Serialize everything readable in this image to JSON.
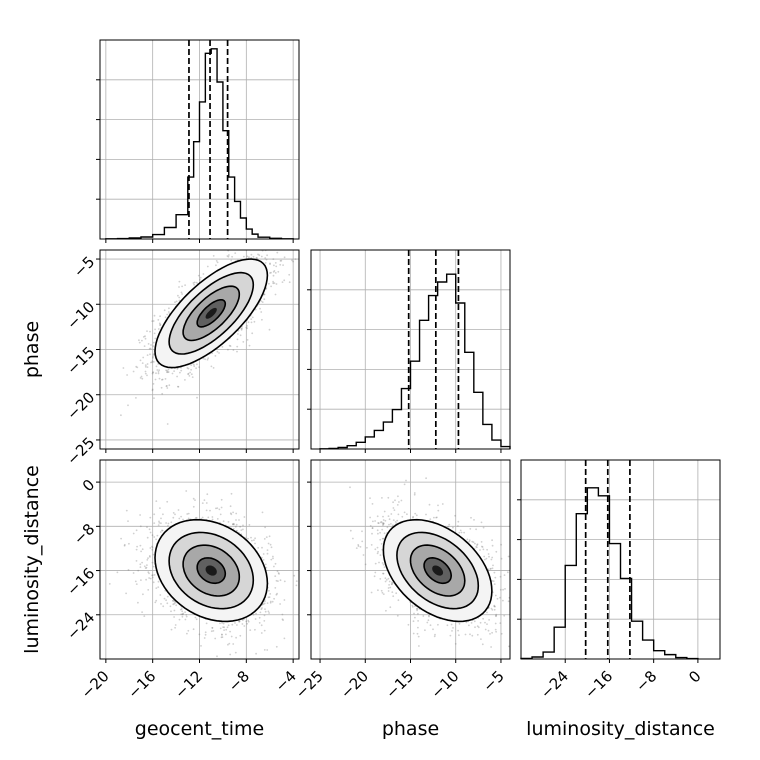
{
  "chart_data": {
    "type": "corner",
    "title": "",
    "grid": true,
    "parameters": [
      {
        "name": "geocent_time",
        "range": [
          -20.5,
          -3.5
        ],
        "ticks": [
          -20,
          -16,
          -12,
          -8,
          -4
        ],
        "tick_labels": [
          "−20",
          "−16",
          "−12",
          "−8",
          "−4"
        ],
        "quantiles": [
          -12.9,
          -11.1,
          -9.6
        ],
        "hist_bin_edges": [
          -20,
          -19,
          -18,
          -17,
          -16,
          -15,
          -14,
          -13,
          -12.5,
          -12,
          -11.5,
          -11,
          -10.5,
          -10,
          -9.5,
          -9,
          -8.5,
          -8,
          -7.5,
          -7,
          -6,
          -5,
          -4
        ],
        "hist_counts": [
          1,
          2,
          5,
          9,
          20,
          52,
          110,
          280,
          440,
          620,
          840,
          860,
          710,
          490,
          280,
          170,
          95,
          45,
          22,
          8,
          3,
          1
        ],
        "hist_ymax": 900
      },
      {
        "name": "phase",
        "range": [
          -26,
          -4
        ],
        "ticks": [
          -25,
          -20,
          -15,
          -10,
          -5
        ],
        "tick_labels": [
          "−25",
          "−20",
          "−15",
          "−10",
          "−5"
        ],
        "quantiles": [
          -15.2,
          -12.2,
          -9.7
        ],
        "hist_bin_edges": [
          -25,
          -24,
          -23,
          -22,
          -21,
          -20,
          -19,
          -18,
          -17,
          -16,
          -15,
          -14,
          -13,
          -12,
          -11,
          -10,
          -9,
          -8,
          -7,
          -6,
          -5,
          -4
        ],
        "hist_counts": [
          1,
          3,
          8,
          18,
          36,
          65,
          100,
          145,
          212,
          325,
          472,
          692,
          825,
          898,
          940,
          785,
          520,
          305,
          132,
          48,
          13
        ],
        "hist_ymax": 1070
      },
      {
        "name": "luminosity_distance",
        "range": [
          -32,
          4
        ],
        "ticks": [
          -24,
          -16,
          -8,
          0
        ],
        "tick_labels": [
          "−24",
          "−16",
          "−8",
          "0"
        ],
        "quantiles": [
          -20.3,
          -16.3,
          -12.3
        ],
        "hist_bin_edges": [
          -32,
          -30,
          -28,
          -26,
          -24,
          -22,
          -20,
          -18,
          -16,
          -14,
          -12,
          -10,
          -8,
          -6,
          -4,
          -2,
          0
        ],
        "hist_counts": [
          3,
          10,
          35,
          160,
          470,
          730,
          860,
          820,
          580,
          405,
          190,
          95,
          42,
          22,
          7,
          2
        ],
        "hist_ymax": 1000
      }
    ],
    "pairs": [
      {
        "x": 0,
        "y": 1,
        "center": [
          -11,
          -11
        ],
        "sigma": [
          2.4,
          3.0
        ],
        "rho": 0.7,
        "contours": [
          0.5,
          1.0,
          1.5,
          2.0
        ],
        "points": 2300
      },
      {
        "x": 0,
        "y": 2,
        "center": [
          -11,
          -16
        ],
        "sigma": [
          2.4,
          4.6
        ],
        "rho": -0.25,
        "contours": [
          0.5,
          1.0,
          1.5,
          2.0
        ],
        "points": 2300
      },
      {
        "x": 1,
        "y": 2,
        "center": [
          -12,
          -16
        ],
        "sigma": [
          3.0,
          4.6
        ],
        "rho": -0.4,
        "contours": [
          0.5,
          1.0,
          1.5,
          2.0
        ],
        "points": 2300
      }
    ]
  }
}
